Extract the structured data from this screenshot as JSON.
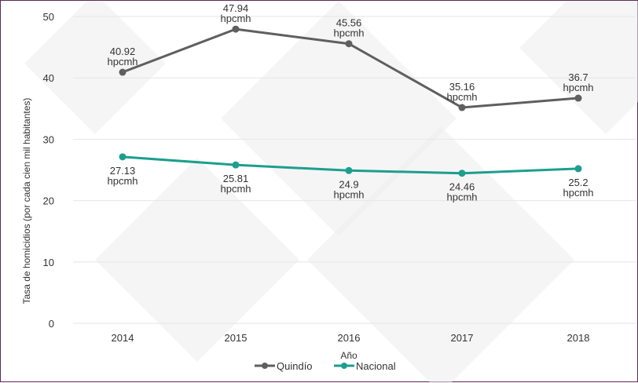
{
  "chart_data": {
    "type": "line",
    "xlabel": "Año",
    "ylabel": "Tasa de homicidios (por cada cien mil habitantes)",
    "categories": [
      "2014",
      "2015",
      "2016",
      "2017",
      "2018"
    ],
    "ylim": [
      0,
      50
    ],
    "yticks": [
      0,
      10,
      20,
      30,
      40,
      50
    ],
    "grid": true,
    "legend_position": "bottom",
    "unit_label": "hpcmh",
    "series": [
      {
        "name": "Quindío",
        "color": "#5f5f5f",
        "values": [
          40.92,
          47.94,
          45.56,
          35.16,
          36.7
        ],
        "label_position": "above"
      },
      {
        "name": "Nacional",
        "color": "#1d9e8e",
        "values": [
          27.13,
          25.81,
          24.9,
          24.46,
          25.2
        ],
        "label_position": "below"
      }
    ]
  },
  "colors": {
    "frame": "#5b2a55",
    "grid": "#e6e6e6",
    "watermark": "#ececec"
  }
}
